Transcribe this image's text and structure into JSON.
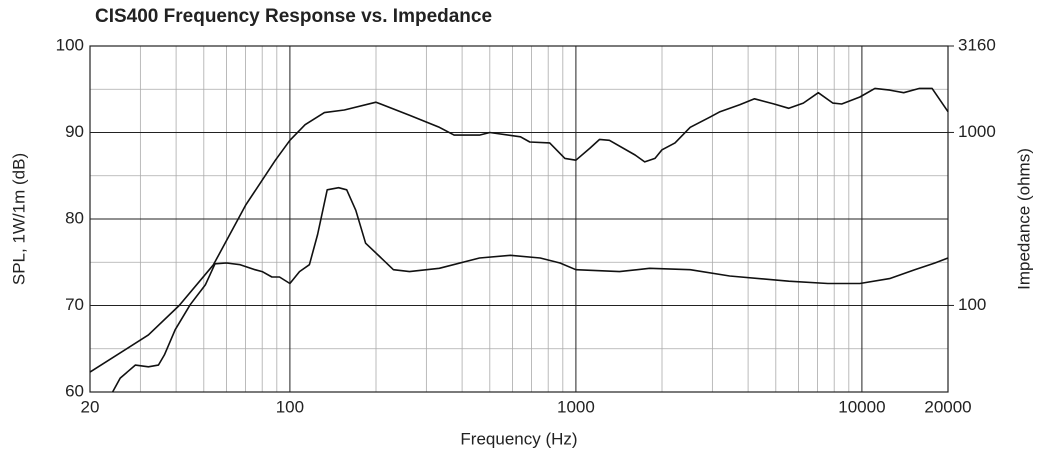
{
  "chart_data": {
    "type": "line",
    "title": "CIS400 Frequency Response vs. Impedance",
    "xlabel": "Frequency (Hz)",
    "ylabel": "SPL, 1W/1m (dB)",
    "y2label": "Impedance (ohms)",
    "xscale": "log",
    "y2scale": "log",
    "xlim": [
      20,
      20000
    ],
    "xticks": [
      20,
      100,
      1000,
      10000,
      20000
    ],
    "xminorticks": [
      30,
      40,
      50,
      60,
      70,
      80,
      90,
      200,
      300,
      400,
      500,
      600,
      700,
      800,
      900,
      2000,
      3000,
      4000,
      5000,
      6000,
      7000,
      8000,
      9000
    ],
    "ylim": [
      60,
      100
    ],
    "yticks": [
      60,
      70,
      80,
      90,
      100
    ],
    "yminorticks": [
      65,
      75,
      85,
      95
    ],
    "y2lim": [
      31.6,
      3160
    ],
    "y2ticks": [
      100,
      1000,
      3160
    ],
    "grid": true,
    "series": [
      {
        "color": "#111111",
        "x": [
          20,
          32,
          41,
          54,
          70,
          89,
          100,
          113,
          132,
          155,
          200,
          262,
          333,
          375,
          460,
          500,
          640,
          690,
          810,
          915,
          1000,
          1120,
          1210,
          1310,
          1610,
          1740,
          1890,
          2000,
          2220,
          2510,
          2950,
          3190,
          3740,
          4210,
          4930,
          5550,
          6240,
          7040,
          7920,
          8500,
          9840,
          11100,
          12500,
          14000,
          15900,
          17600,
          20000
        ],
        "values": [
          62.3,
          66.6,
          70,
          74.7,
          81.6,
          86.8,
          89.1,
          90.9,
          92.3,
          92.6,
          93.5,
          92,
          90.6,
          89.7,
          89.7,
          90,
          89.5,
          88.9,
          88.8,
          87,
          86.8,
          88.2,
          89.2,
          89.1,
          87.4,
          86.6,
          87,
          88,
          88.8,
          90.6,
          91.8,
          92.4,
          93.2,
          93.9,
          93.3,
          92.8,
          93.4,
          94.6,
          93.4,
          93.3,
          94.1,
          95.1,
          94.9,
          94.6,
          95.1,
          95.1,
          92.4
        ]
      },
      {
        "color": "#111111",
        "axis": "y2",
        "x": [
          24,
          25.5,
          28.8,
          32,
          34.7,
          36.4,
          39.7,
          44.8,
          50.7,
          54.7,
          60,
          67,
          75.5,
          80,
          86.5,
          92,
          100,
          108,
          117,
          125,
          135,
          148,
          158,
          170,
          184,
          205,
          230,
          262,
          333,
          460,
          590,
          750,
          880,
          1000,
          1420,
          1810,
          2510,
          3450,
          5550,
          7600,
          9840,
          12500,
          15300,
          18000,
          20000
        ],
        "values": [
          31.6,
          38,
          45.2,
          44.2,
          45.2,
          51.8,
          72.4,
          101,
          132,
          174,
          176,
          172,
          161,
          157,
          146,
          146,
          134,
          157,
          172,
          257,
          466,
          479,
          466,
          355,
          229,
          193,
          161,
          157,
          164,
          188,
          195,
          188,
          176,
          161,
          157,
          164,
          161,
          148,
          138,
          134,
          134,
          143,
          161,
          176,
          188
        ]
      }
    ]
  }
}
